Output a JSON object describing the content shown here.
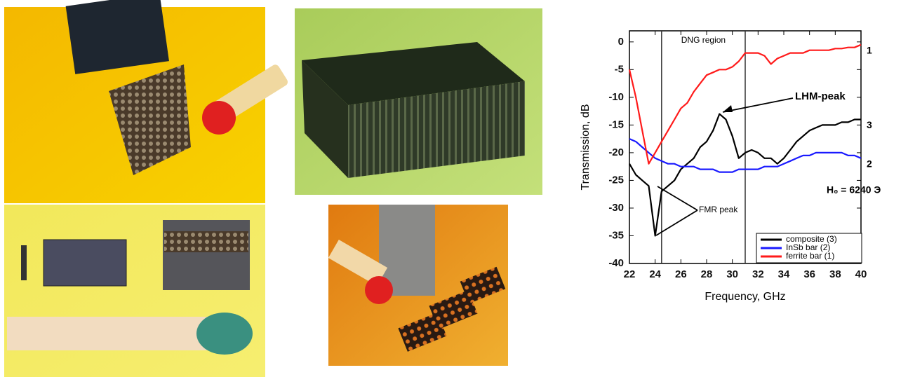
{
  "chart_data": {
    "type": "line",
    "x_label": "Frequency, GHz",
    "y_label": "Transmission, dB",
    "xlim": [
      22,
      40
    ],
    "ylim": [
      -40,
      2
    ],
    "xticks": [
      22,
      24,
      26,
      28,
      30,
      32,
      34,
      36,
      38,
      40
    ],
    "yticks": [
      0,
      -5,
      -10,
      -15,
      -20,
      -25,
      -30,
      -35,
      -40
    ],
    "region": [
      24.5,
      31
    ],
    "region_label": "DNG region",
    "annotations": [
      "LHM-peak",
      "FMR peak",
      "H₀ = 6240 Э"
    ],
    "legend": "lower right",
    "x": [
      22,
      22.5,
      23,
      23.5,
      24,
      24.5,
      25,
      25.5,
      26,
      26.5,
      27,
      27.5,
      28,
      28.5,
      29,
      29.5,
      30,
      30.5,
      31,
      31.5,
      32,
      32.5,
      33,
      33.5,
      34,
      34.5,
      35,
      35.5,
      36,
      36.5,
      37,
      37.5,
      38,
      38.5,
      39,
      39.5,
      40
    ],
    "series": [
      {
        "name": "composite (3)",
        "color": "#000000",
        "curve_label": "3",
        "values": [
          -22,
          -24,
          -25,
          -26,
          -35,
          -27,
          -26,
          -25,
          -23,
          -22,
          -21,
          -19,
          -18,
          -16,
          -13,
          -14,
          -17,
          -21,
          -20,
          -19.5,
          -20,
          -21,
          -21,
          -22,
          -21,
          -19.5,
          -18,
          -17,
          -16,
          -15.5,
          -15,
          -15,
          -15,
          -14.5,
          -14.5,
          -14,
          -14
        ]
      },
      {
        "name": "InSb bar (2)",
        "color": "#1a1aff",
        "curve_label": "2",
        "values": [
          -17.5,
          -18,
          -19,
          -20,
          -21,
          -21.5,
          -22,
          -22,
          -22.5,
          -22.5,
          -22.5,
          -23,
          -23,
          -23,
          -23.5,
          -23.5,
          -23.5,
          -23,
          -23,
          -23,
          -23,
          -22.5,
          -22.5,
          -22.5,
          -22,
          -21.5,
          -21,
          -20.5,
          -20.5,
          -20,
          -20,
          -20,
          -20,
          -20,
          -20.5,
          -20.5,
          -21
        ]
      },
      {
        "name": "ferrite bar (1)",
        "color": "#ff1a1a",
        "curve_label": "1",
        "values": [
          -5,
          -10,
          -16,
          -22,
          -20,
          -18,
          -16,
          -14,
          -12,
          -11,
          -9,
          -7.5,
          -6,
          -5.5,
          -5,
          -5,
          -4.5,
          -3.5,
          -2,
          -2,
          -2,
          -2.5,
          -4,
          -3,
          -2.5,
          -2,
          -2,
          -2,
          -1.5,
          -1.5,
          -1.5,
          -1.5,
          -1.2,
          -1.2,
          -1,
          -1,
          -0.5
        ]
      }
    ]
  }
}
